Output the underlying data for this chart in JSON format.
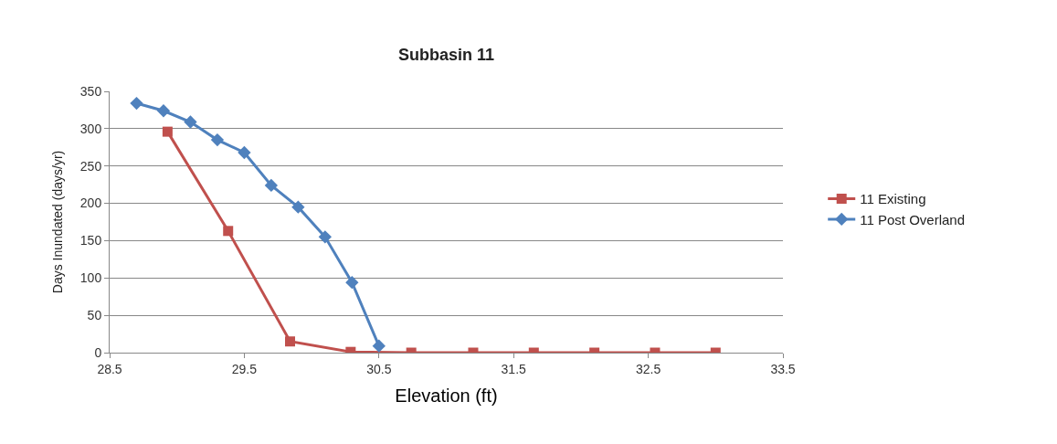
{
  "chart_data": {
    "type": "line",
    "title": "Subbasin 11",
    "xlabel": "Elevation (ft)",
    "ylabel": "Days Inundated (days/yr)",
    "xlim": [
      28.5,
      33.5
    ],
    "xticks": [
      28.5,
      29.5,
      30.5,
      31.5,
      32.5,
      33.5
    ],
    "ylim": [
      0,
      350
    ],
    "yticks": [
      0,
      50,
      100,
      150,
      200,
      250,
      300,
      350
    ],
    "grid": "y",
    "legend": "right",
    "series": [
      {
        "name": "11 Existing",
        "color": "#c0504d",
        "marker": "square",
        "x": [
          28.93,
          29.38,
          29.84,
          30.29,
          30.74,
          31.2,
          31.65,
          32.1,
          32.55,
          33.0
        ],
        "values": [
          296,
          163,
          15,
          1,
          0,
          0,
          0,
          0,
          0,
          0
        ]
      },
      {
        "name": "11 Post Overland",
        "color": "#4f81bd",
        "marker": "diamond",
        "x": [
          28.7,
          28.9,
          29.1,
          29.3,
          29.5,
          29.7,
          29.9,
          30.1,
          30.3,
          30.5
        ],
        "values": [
          334,
          324,
          309,
          285,
          268,
          224,
          195,
          155,
          94,
          9
        ]
      }
    ]
  }
}
